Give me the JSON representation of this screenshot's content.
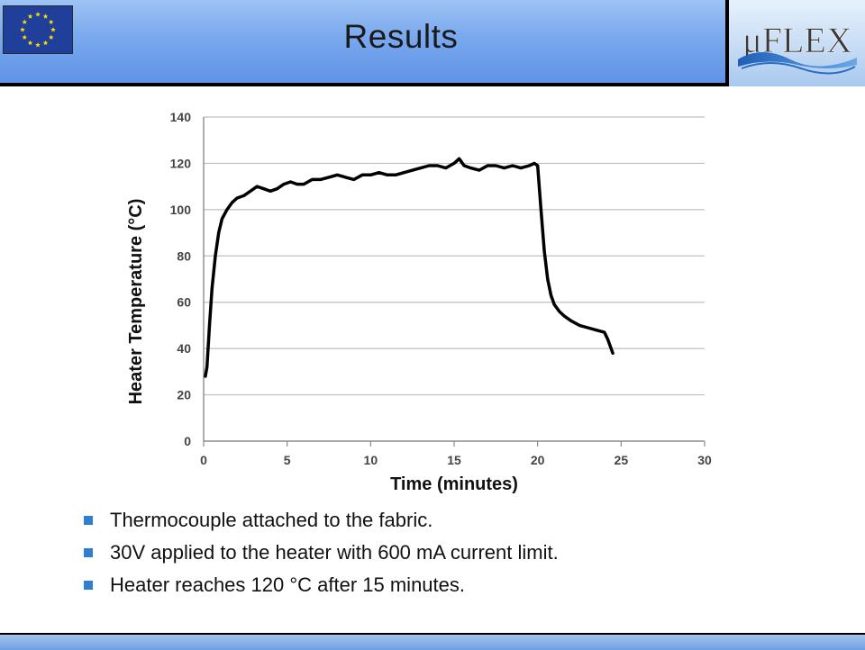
{
  "slide": {
    "title": "Results",
    "bullets": [
      "Thermocouple attached to the fabric.",
      "30V applied to the heater with 600 mA current limit.",
      "Heater reaches 120 °C after 15 minutes."
    ],
    "colors": {
      "header_band": "#79a8ee",
      "bullet": "#2e7fd4",
      "eu_flag_blue": "#1f3f9a",
      "eu_flag_star": "#ffdd00"
    },
    "logo_text": "μFLEX"
  },
  "chart_data": {
    "type": "line",
    "title": "",
    "xlabel": "Time (minutes)",
    "ylabel": "Heater Temperature (°C)",
    "xlim": [
      0,
      30
    ],
    "ylim": [
      0,
      140
    ],
    "x_ticks": [
      0,
      5,
      10,
      15,
      20,
      25,
      30
    ],
    "y_ticks": [
      0,
      20,
      40,
      60,
      80,
      100,
      120,
      140
    ],
    "grid": "horizontal",
    "line_color": "#000000",
    "series": [
      {
        "x": [
          0.1,
          0.2,
          0.35,
          0.5,
          0.7,
          0.9,
          1.1,
          1.4,
          1.7,
          2.0,
          2.4,
          2.8,
          3.2,
          3.6,
          4.0,
          4.4,
          4.8,
          5.2,
          5.6,
          6.0,
          6.5,
          7.0,
          7.5,
          8.0,
          8.5,
          9.0,
          9.5,
          10.0,
          10.5,
          11.0,
          11.5,
          12.0,
          12.5,
          13.0,
          13.5,
          14.0,
          14.5,
          15.0,
          15.3,
          15.6,
          16.0,
          16.5,
          17.0,
          17.5,
          18.0,
          18.5,
          19.0,
          19.5,
          19.8,
          20.0,
          20.2,
          20.4,
          20.6,
          20.8,
          21.0,
          21.3,
          21.6,
          22.0,
          22.5,
          23.0,
          23.5,
          24.0,
          24.2,
          24.5
        ],
        "y": [
          28,
          32,
          50,
          66,
          80,
          90,
          96,
          100,
          103,
          105,
          106,
          108,
          110,
          109,
          108,
          109,
          111,
          112,
          111,
          111,
          113,
          113,
          114,
          115,
          114,
          113,
          115,
          115,
          116,
          115,
          115,
          116,
          117,
          118,
          119,
          119,
          118,
          120,
          122,
          119,
          118,
          117,
          119,
          119,
          118,
          119,
          118,
          119,
          120,
          119,
          100,
          82,
          70,
          63,
          59,
          56,
          54,
          52,
          50,
          49,
          48,
          47,
          44,
          38
        ]
      }
    ]
  }
}
